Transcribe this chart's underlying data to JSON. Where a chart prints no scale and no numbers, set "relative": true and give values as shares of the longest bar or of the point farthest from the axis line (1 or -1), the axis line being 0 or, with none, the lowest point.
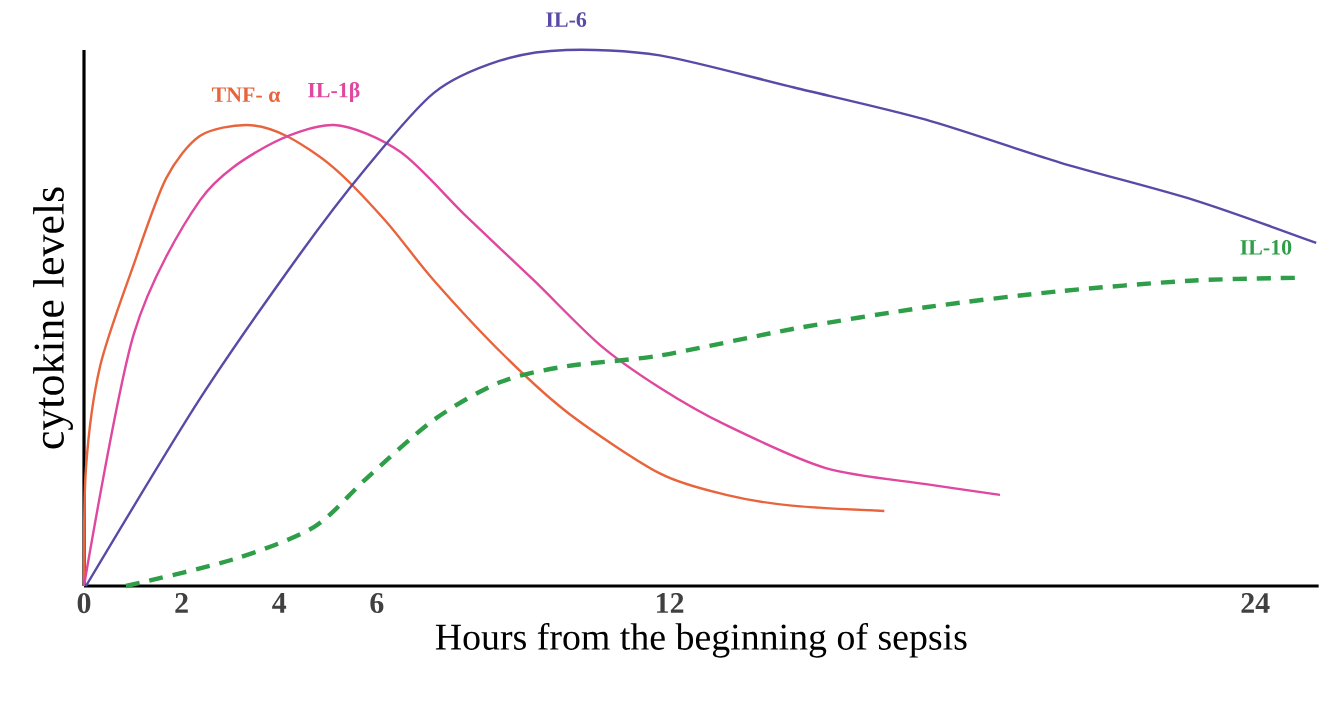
{
  "chart_data": {
    "type": "line",
    "relative": true,
    "xlabel": "Hours from the beginning of sepsis",
    "ylabel": "cytokine levels",
    "xlim": [
      0,
      25.3
    ],
    "xticks": [
      0,
      2,
      4,
      6,
      12,
      24
    ],
    "grid": false,
    "legend": false,
    "marker": "none",
    "series": [
      {
        "name": "TNF- α",
        "color": "#e8643c",
        "line_style": "solid",
        "x": [
          0,
          0.04,
          0.33,
          1.02,
          1.68,
          2.38,
          3.32,
          4.14,
          5.12,
          6.19,
          7.17,
          8.61,
          9.96,
          11.8,
          13.16,
          14.5,
          16.4
        ],
        "values": [
          0,
          0.22,
          0.41,
          0.6,
          0.76,
          0.84,
          0.86,
          0.84,
          0.78,
          0.68,
          0.57,
          0.43,
          0.32,
          0.21,
          0.17,
          0.15,
          0.14
        ]
      },
      {
        "name": "IL-1β",
        "color": "#e0479e",
        "line_style": "solid",
        "x": [
          0,
          1.02,
          2.38,
          3.73,
          5.12,
          6.48,
          7.83,
          9.22,
          10.57,
          11.8,
          13.16,
          15.2,
          17.25,
          18.77
        ],
        "values": [
          0,
          0.47,
          0.72,
          0.82,
          0.86,
          0.81,
          0.69,
          0.57,
          0.45,
          0.37,
          0.3,
          0.22,
          0.19,
          0.17
        ]
      },
      {
        "name": "IL-6",
        "color": "#5a4aa8",
        "line_style": "solid",
        "x": [
          0.04,
          2.38,
          4.43,
          5.78,
          7.17,
          8.52,
          9.88,
          11.8,
          14.55,
          17.25,
          20.0,
          22.75,
          25.25
        ],
        "values": [
          0,
          0.35,
          0.62,
          0.78,
          0.92,
          0.98,
          1,
          0.99,
          0.93,
          0.87,
          0.79,
          0.72,
          0.64
        ]
      },
      {
        "name": "IL-10",
        "color": "#2e9e48",
        "line_style": "dashed",
        "x": [
          0.86,
          3.07,
          4.71,
          5.78,
          7.17,
          8.52,
          9.88,
          11.8,
          14.55,
          17.25,
          20.0,
          22.75,
          24.9
        ],
        "values": [
          0,
          0.05,
          0.11,
          0.2,
          0.31,
          0.38,
          0.41,
          0.43,
          0.48,
          0.52,
          0.55,
          0.57,
          0.575
        ]
      }
    ]
  }
}
